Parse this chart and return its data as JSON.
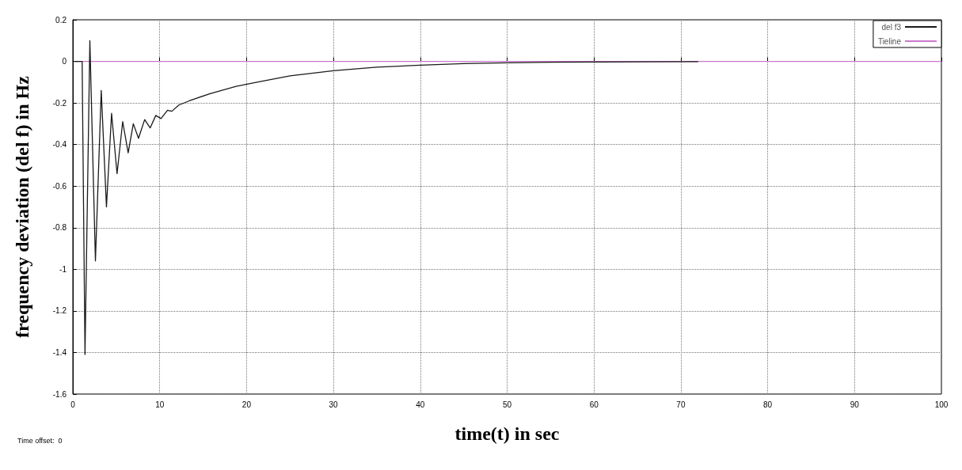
{
  "chart_data": {
    "type": "line",
    "xlabel": "time(t) in sec",
    "ylabel": "frequency deviation (del f) in Hz",
    "annotations": [
      "Time offset:  0"
    ],
    "xlim": [
      0,
      100
    ],
    "xticks": [
      0,
      10,
      20,
      30,
      40,
      50,
      60,
      70,
      80,
      90,
      100
    ],
    "ylim": [
      -1.6,
      0.2
    ],
    "yticks": [
      -1.6,
      -1.4,
      -1.2,
      -1,
      -0.8,
      -0.6,
      -0.4,
      -0.2,
      0,
      0.2
    ],
    "grid": true,
    "legend": "top right",
    "marker": "none",
    "line_style": "solid",
    "series": [
      {
        "name": "del f3",
        "color": "#1a1a1a",
        "x": [
          0,
          1.07,
          1.4,
          1.96,
          2.6,
          3.27,
          3.87,
          4.46,
          5.09,
          5.74,
          6.37,
          6.96,
          7.56,
          8.27,
          8.9,
          9.55,
          10.15,
          10.9,
          11.4,
          12.2,
          13.4,
          15.8,
          18.8,
          21.2,
          25,
          30,
          35,
          40,
          45,
          50,
          55,
          60,
          65,
          72
        ],
        "values": [
          0,
          0,
          -1.41,
          0.1,
          -0.96,
          -0.14,
          -0.7,
          -0.25,
          -0.54,
          -0.29,
          -0.44,
          -0.3,
          -0.37,
          -0.28,
          -0.32,
          -0.26,
          -0.275,
          -0.235,
          -0.24,
          -0.21,
          -0.19,
          -0.155,
          -0.12,
          -0.1,
          -0.07,
          -0.045,
          -0.028,
          -0.018,
          -0.011,
          -0.007,
          -0.004,
          -0.003,
          -0.002,
          -0.001
        ]
      },
      {
        "name": "Tieline",
        "color": "#cc77cc",
        "x": [
          0,
          100
        ],
        "values": [
          0,
          0
        ]
      }
    ]
  }
}
